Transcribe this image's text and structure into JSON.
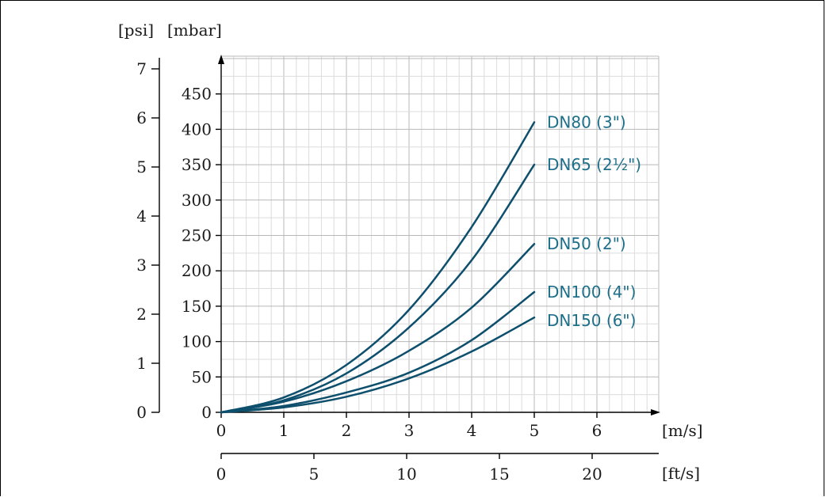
{
  "chart_data": {
    "type": "line",
    "x_label_primary": "[m/s]",
    "x_label_secondary": "[ft/s]",
    "y_label_primary": "[mbar]",
    "y_label_secondary": "[psi]",
    "x_ticks_ms": [
      0,
      1,
      2,
      3,
      4,
      5,
      6
    ],
    "x_ticks_fts": [
      0,
      5,
      10,
      15,
      20
    ],
    "y_ticks_mbar": [
      0,
      50,
      100,
      150,
      200,
      250,
      300,
      350,
      400,
      450
    ],
    "y_ticks_psi": [
      0,
      1,
      2,
      3,
      4,
      5,
      6,
      7
    ],
    "xlim_ms": [
      0,
      7
    ],
    "ylim_mbar": [
      0,
      500
    ],
    "grid": true,
    "series": [
      {
        "name": "DN80 (3\")",
        "x": [
          0,
          1,
          2,
          3,
          4,
          5
        ],
        "y": [
          0,
          21,
          67,
          145,
          262,
          410
        ]
      },
      {
        "name": "DN65 (2½\")",
        "x": [
          0,
          1,
          2,
          3,
          4,
          5
        ],
        "y": [
          0,
          17,
          55,
          120,
          215,
          350
        ]
      },
      {
        "name": "DN50 (2\")",
        "x": [
          0,
          1,
          2,
          3,
          4,
          5
        ],
        "y": [
          0,
          15,
          44,
          87,
          148,
          238
        ]
      },
      {
        "name": "DN100 (4\")",
        "x": [
          0,
          1,
          2,
          3,
          4,
          5
        ],
        "y": [
          0,
          9,
          28,
          56,
          102,
          170
        ]
      },
      {
        "name": "DN150 (6\")",
        "x": [
          0,
          1,
          2,
          3,
          4,
          5
        ],
        "y": [
          0,
          7,
          22,
          48,
          86,
          134
        ]
      }
    ],
    "series_color": "#0d4f6c",
    "label_color": "#1e6f8a"
  }
}
